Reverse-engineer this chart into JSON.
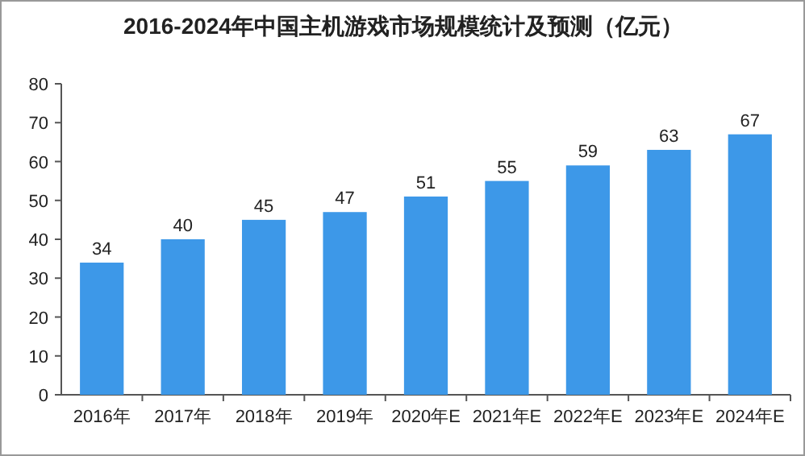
{
  "chart_data": {
    "type": "bar",
    "title": "2016-2024年中国主机游戏市场规模统计及预测（亿元）",
    "categories": [
      "2016年",
      "2017年",
      "2018年",
      "2019年",
      "2020年E",
      "2021年E",
      "2022年E",
      "2023年E",
      "2024年E"
    ],
    "values": [
      34,
      40,
      45,
      47,
      51,
      55,
      59,
      63,
      67
    ],
    "color": "#3d98e8",
    "ylim": [
      0,
      80
    ],
    "yticks": [
      0,
      10,
      20,
      30,
      40,
      50,
      60,
      70,
      80
    ],
    "grid": false,
    "data_labels": true
  }
}
